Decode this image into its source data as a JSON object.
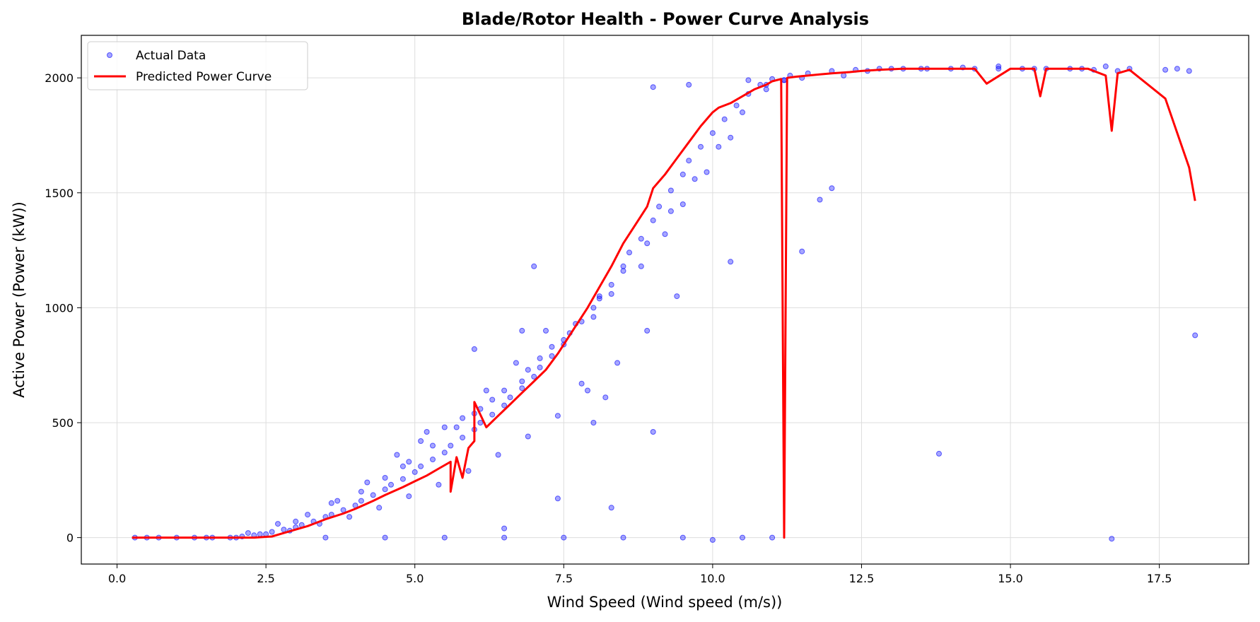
{
  "chart_data": {
    "type": "scatter",
    "title": "Blade/Rotor Health - Power Curve Analysis",
    "xlabel": "Wind Speed (Wind speed (m/s))",
    "ylabel": "Active Power (Power (kW))",
    "xlim": [
      -0.6,
      19.0
    ],
    "ylim": [
      -115,
      2185
    ],
    "x_ticks": [
      0.0,
      2.5,
      5.0,
      7.5,
      10.0,
      12.5,
      15.0,
      17.5
    ],
    "x_tick_labels": [
      "0.0",
      "2.5",
      "5.0",
      "7.5",
      "10.0",
      "12.5",
      "15.0",
      "17.5"
    ],
    "y_ticks": [
      0,
      500,
      1000,
      1500,
      2000
    ],
    "y_tick_labels": [
      "0",
      "500",
      "1000",
      "1500",
      "2000"
    ],
    "grid": true,
    "legend_position": "top-left",
    "legend": [
      "Actual Data",
      "Predicted Power Curve"
    ],
    "colors": {
      "actual": "#0000ff",
      "predicted": "#ff0000"
    },
    "series": [
      {
        "name": "Actual Data",
        "kind": "scatter",
        "x": [
          0.3,
          0.5,
          0.7,
          1.0,
          1.3,
          1.6,
          1.9,
          2.1,
          2.3,
          2.5,
          2.6,
          2.8,
          3.0,
          3.1,
          3.3,
          3.5,
          3.6,
          3.8,
          4.0,
          4.1,
          4.3,
          4.5,
          4.6,
          4.8,
          5.0,
          5.1,
          5.3,
          5.5,
          5.6,
          5.8,
          6.0,
          6.1,
          6.3,
          6.5,
          6.6,
          6.8,
          7.0,
          7.1,
          7.3,
          7.5,
          7.6,
          7.8,
          8.0,
          8.1,
          8.3,
          8.5,
          8.6,
          8.8,
          9.0,
          9.1,
          9.3,
          9.5,
          9.6,
          9.8,
          10.0,
          10.2,
          10.4,
          10.6,
          10.8,
          11.0,
          11.3,
          11.6,
          12.0,
          12.4,
          12.8,
          13.2,
          13.6,
          14.0,
          14.4,
          14.8,
          15.2,
          15.6,
          16.0,
          16.4,
          16.8,
          17.0,
          17.6,
          18.0,
          2.7,
          3.2,
          3.6,
          4.1,
          4.5,
          4.9,
          5.3,
          5.7,
          6.1,
          6.5,
          6.9,
          7.3,
          7.7,
          8.1,
          8.5,
          8.9,
          9.3,
          9.7,
          10.1,
          2.4,
          2.9,
          3.4,
          3.9,
          4.4,
          4.9,
          5.4,
          5.9,
          6.4,
          6.9,
          7.4,
          7.9,
          8.4,
          8.9,
          9.4,
          4.7,
          5.2,
          5.8,
          6.2,
          6.7,
          7.2,
          2.2,
          3.0,
          3.7,
          4.2,
          4.8,
          5.1,
          5.5,
          6.0,
          6.3,
          6.8,
          7.1,
          7.5,
          8.0,
          8.3,
          8.8,
          9.2,
          9.5,
          9.9,
          10.3,
          10.5,
          10.9,
          11.2,
          11.5,
          12.2,
          12.6,
          13.0,
          13.5,
          14.2,
          14.8,
          15.4,
          16.2,
          16.6,
          17.8,
          1.5,
          2.0,
          3.5,
          4.5,
          5.5,
          6.5,
          7.5,
          8.5,
          9.5,
          10.5,
          6.0,
          7.0,
          8.0,
          9.0,
          10.0,
          11.0,
          13.8,
          16.7,
          18.1,
          10.3,
          11.5,
          12.0,
          11.8,
          10.9,
          11.2,
          10.6,
          9.0,
          9.6,
          8.2,
          7.8,
          6.8,
          8.3,
          7.4,
          6.5
        ],
        "y": [
          0,
          0,
          0,
          0,
          0,
          0,
          0,
          5,
          10,
          15,
          25,
          35,
          45,
          55,
          70,
          90,
          100,
          120,
          140,
          160,
          185,
          210,
          230,
          255,
          285,
          310,
          340,
          370,
          400,
          435,
          470,
          500,
          535,
          575,
          610,
          650,
          700,
          740,
          790,
          840,
          890,
          940,
          1000,
          1050,
          1100,
          1180,
          1240,
          1300,
          1380,
          1440,
          1510,
          1580,
          1640,
          1700,
          1760,
          1820,
          1880,
          1930,
          1970,
          1995,
          2010,
          2020,
          2030,
          2035,
          2040,
          2040,
          2040,
          2040,
          2040,
          2040,
          2040,
          2040,
          2040,
          2035,
          2030,
          2040,
          2035,
          2030,
          60,
          100,
          150,
          200,
          260,
          330,
          400,
          480,
          560,
          640,
          730,
          830,
          930,
          1040,
          1160,
          1280,
          1420,
          1560,
          1700,
          15,
          30,
          60,
          90,
          130,
          180,
          230,
          290,
          360,
          440,
          530,
          640,
          760,
          900,
          1050,
          360,
          460,
          520,
          640,
          760,
          900,
          20,
          70,
          160,
          240,
          310,
          420,
          480,
          540,
          600,
          680,
          780,
          860,
          960,
          1060,
          1180,
          1320,
          1450,
          1590,
          1740,
          1850,
          1950,
          1990,
          2000,
          2010,
          2030,
          2040,
          2040,
          2045,
          2050,
          2040,
          2040,
          2050,
          2040,
          0,
          0,
          0,
          0,
          0,
          0,
          0,
          0,
          0,
          0,
          820,
          1180,
          500,
          460,
          -10,
          0,
          365,
          -5,
          880,
          1200,
          1245,
          1520,
          1470,
          1970,
          1990,
          1990,
          1960,
          1970,
          610,
          670,
          900,
          130,
          170,
          40
        ],
        "y_unit": "kW"
      },
      {
        "name": "Predicted Power Curve",
        "kind": "line",
        "x": [
          0.25,
          0.5,
          1.0,
          1.5,
          2.0,
          2.3,
          2.6,
          2.8,
          3.0,
          3.2,
          3.3,
          3.5,
          3.8,
          4.0,
          4.3,
          4.5,
          4.8,
          5.0,
          5.2,
          5.4,
          5.6,
          5.6,
          5.7,
          5.8,
          5.9,
          6.0,
          6.0,
          6.2,
          6.4,
          6.6,
          6.8,
          7.0,
          7.2,
          7.4,
          7.5,
          7.7,
          7.9,
          8.1,
          8.3,
          8.5,
          8.7,
          8.9,
          9.0,
          9.2,
          9.4,
          9.6,
          9.8,
          10.0,
          10.1,
          10.3,
          10.5,
          10.7,
          10.9,
          11.0,
          11.15,
          11.2,
          11.25,
          11.4,
          11.6,
          11.8,
          12.0,
          12.3,
          12.5,
          12.8,
          13.2,
          13.6,
          14.0,
          14.4,
          14.6,
          15.0,
          15.4,
          15.5,
          15.6,
          16.0,
          16.3,
          16.6,
          16.7,
          16.8,
          17.0,
          17.6,
          18.0,
          18.1
        ],
        "y": [
          0,
          0,
          0,
          0,
          0,
          0,
          5,
          20,
          35,
          50,
          60,
          80,
          105,
          125,
          160,
          185,
          220,
          245,
          270,
          300,
          330,
          200,
          350,
          260,
          390,
          420,
          590,
          480,
          530,
          580,
          630,
          680,
          730,
          800,
          840,
          920,
          1000,
          1090,
          1180,
          1280,
          1360,
          1440,
          1520,
          1580,
          1650,
          1720,
          1790,
          1850,
          1870,
          1890,
          1920,
          1950,
          1970,
          1985,
          1995,
          0,
          2000,
          2005,
          2010,
          2015,
          2020,
          2025,
          2030,
          2035,
          2040,
          2040,
          2040,
          2040,
          1975,
          2040,
          2040,
          1920,
          2040,
          2040,
          2040,
          2010,
          1770,
          2020,
          2035,
          1910,
          1610,
          1465
        ],
        "y_unit": "kW"
      }
    ]
  }
}
